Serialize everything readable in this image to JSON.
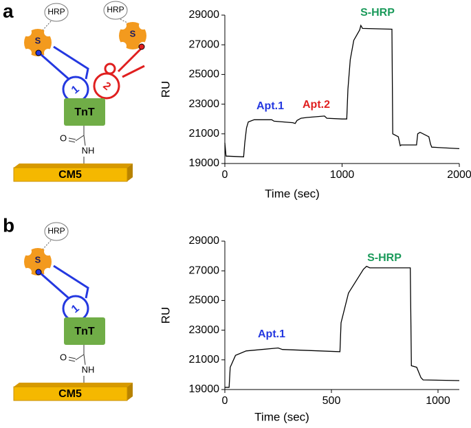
{
  "panels": [
    "a",
    "b"
  ],
  "diagrams": [
    {
      "hrp": [
        "HRP",
        "HRP"
      ],
      "streptavidin": [
        "S",
        "S"
      ],
      "aptamers": [
        "1",
        "2"
      ],
      "protein": "TnT",
      "linker": [
        "O",
        "NH"
      ],
      "chip": "CM5"
    },
    {
      "hrp": [
        "HRP"
      ],
      "streptavidin": [
        "S"
      ],
      "aptamers": [
        "1"
      ],
      "protein": "TnT",
      "linker": [
        "O",
        "NH"
      ],
      "chip": "CM5"
    }
  ],
  "chart_data": [
    {
      "type": "line",
      "ylabel": "RU",
      "xlabel": "Time (sec)",
      "color": "#000000",
      "xlim": [
        0,
        2000
      ],
      "xticks": [
        0,
        1000,
        2000
      ],
      "ylim": [
        19000,
        29000
      ],
      "yticks": [
        19000,
        21000,
        23000,
        25000,
        27000,
        29000
      ],
      "x": [
        0,
        10,
        160,
        170,
        185,
        200,
        250,
        400,
        420,
        580,
        600,
        615,
        650,
        700,
        850,
        870,
        1000,
        1040,
        1050,
        1070,
        1100,
        1150,
        1160,
        1175,
        1425,
        1432,
        1480,
        1496,
        1505,
        1635,
        1645,
        1665,
        1740,
        1755,
        1765,
        2000
      ],
      "values": [
        20400,
        19500,
        19450,
        20400,
        21400,
        21800,
        21950,
        21950,
        21850,
        21750,
        21700,
        21900,
        22050,
        22100,
        22200,
        22050,
        22000,
        22000,
        24000,
        26000,
        27300,
        28000,
        28300,
        28100,
        28050,
        21000,
        20800,
        20200,
        20250,
        20250,
        21000,
        21100,
        20800,
        20300,
        20100,
        20000
      ],
      "annotations": [
        {
          "text": "Apt.1",
          "color": "#2438e0"
        },
        {
          "text": "Apt.2",
          "color": "#e01f1f"
        },
        {
          "text": "S-HRP",
          "color": "#1a9a5a"
        }
      ]
    },
    {
      "type": "line",
      "ylabel": "RU",
      "xlabel": "Time (sec)",
      "color": "#000000",
      "xlim": [
        0,
        1100
      ],
      "xticks": [
        0,
        500,
        1000
      ],
      "ylim": [
        19000,
        29000
      ],
      "yticks": [
        19000,
        21000,
        23000,
        25000,
        27000,
        29000
      ],
      "x": [
        0,
        20,
        25,
        50,
        100,
        250,
        270,
        540,
        545,
        580,
        650,
        665,
        680,
        870,
        875,
        900,
        920,
        930,
        1100
      ],
      "values": [
        19150,
        19150,
        20500,
        21300,
        21600,
        21800,
        21700,
        21550,
        23500,
        25500,
        27100,
        27300,
        27200,
        27200,
        20600,
        20500,
        19800,
        19650,
        19600
      ],
      "annotations": [
        {
          "text": "Apt.1",
          "color": "#2438e0"
        },
        {
          "text": "S-HRP",
          "color": "#1a9a5a"
        }
      ]
    }
  ]
}
